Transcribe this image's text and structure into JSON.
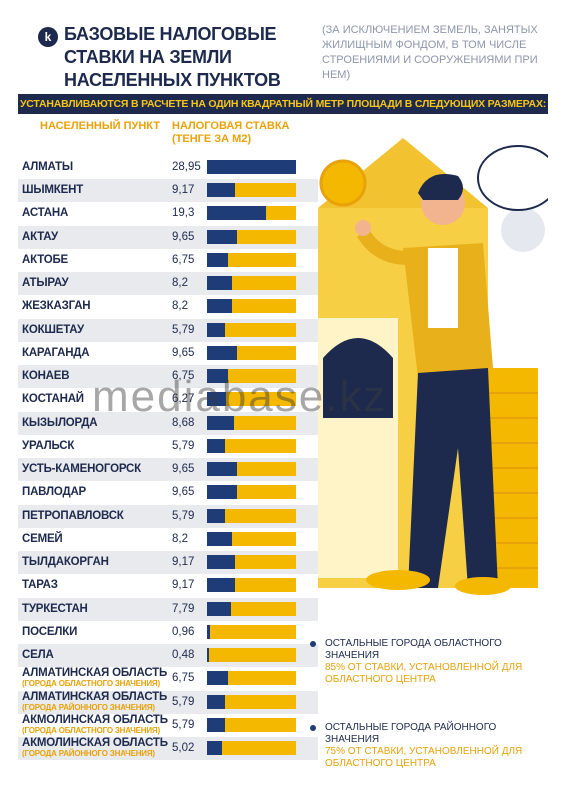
{
  "header": {
    "logo_letter": "k",
    "title": "Базовые налоговые ставки на земли населенных пунктов",
    "subtitle": "(за исключением земель, занятых жилищным фондом, в том числе строениями и сооружениями при нем)"
  },
  "banner": "Устанавливаются в расчете на один квадратный метр площади в следующих размерах:",
  "columns": {
    "city": "Населенный пункт",
    "rate": "Налоговая ставка (тенге за м2)"
  },
  "chart_data": {
    "type": "bar",
    "orientation": "horizontal",
    "xlim": [
      0,
      28.95
    ],
    "categories": [
      "Алматы",
      "Шымкент",
      "Астана",
      "Актау",
      "Актобе",
      "Атырау",
      "Жезказган",
      "Кокшетау",
      "Караганда",
      "Конаев",
      "Костанай",
      "Кызылорда",
      "Уральск",
      "Усть-Каменогорск",
      "Павлодар",
      "Петропавловск",
      "Семей",
      "Тылдакорган",
      "Тараз",
      "Туркестан",
      "Поселки",
      "Села",
      "Алматинская область",
      "Алматинская область",
      "Акмолинская область",
      "Акмолинская область"
    ],
    "category_notes": [
      "",
      "",
      "",
      "",
      "",
      "",
      "",
      "",
      "",
      "",
      "",
      "",
      "",
      "",
      "",
      "",
      "",
      "",
      "",
      "",
      "",
      "",
      "(города областного значения)",
      "(города районного значения)",
      "(города областного значения)",
      "(города районного значения)"
    ],
    "value_labels": [
      "28,95",
      "9,17",
      "19,3",
      "9,65",
      "6,75",
      "8,2",
      "8,2",
      "5,79",
      "9,65",
      "6,75",
      "6,27",
      "8,68",
      "5,79",
      "9,65",
      "9,65",
      "5,79",
      "8,2",
      "9,17",
      "9,17",
      "7,79",
      "0,96",
      "0,48",
      "6,75",
      "5,79",
      "5,79",
      "5,02"
    ],
    "values": [
      28.95,
      9.17,
      19.3,
      9.65,
      6.75,
      8.2,
      8.2,
      5.79,
      9.65,
      6.75,
      6.27,
      8.68,
      5.79,
      9.65,
      9.65,
      5.79,
      8.2,
      9.17,
      9.17,
      7.79,
      0.96,
      0.48,
      6.75,
      5.79,
      5.79,
      5.02
    ]
  },
  "notes": [
    {
      "line1": "Остальные города областного значения",
      "line2": "85% от ставки, установленной для областного центра"
    },
    {
      "line1": "Остальные города районного значения",
      "line2": "75% от ставки, установленной для областного центра"
    }
  ],
  "watermark": "mediabase.kz",
  "colors": {
    "navy": "#1d3c78",
    "yellow": "#f5b800",
    "orange": "#e8a20a",
    "dark": "#1d2a4d",
    "shade": "#e9eaee"
  }
}
